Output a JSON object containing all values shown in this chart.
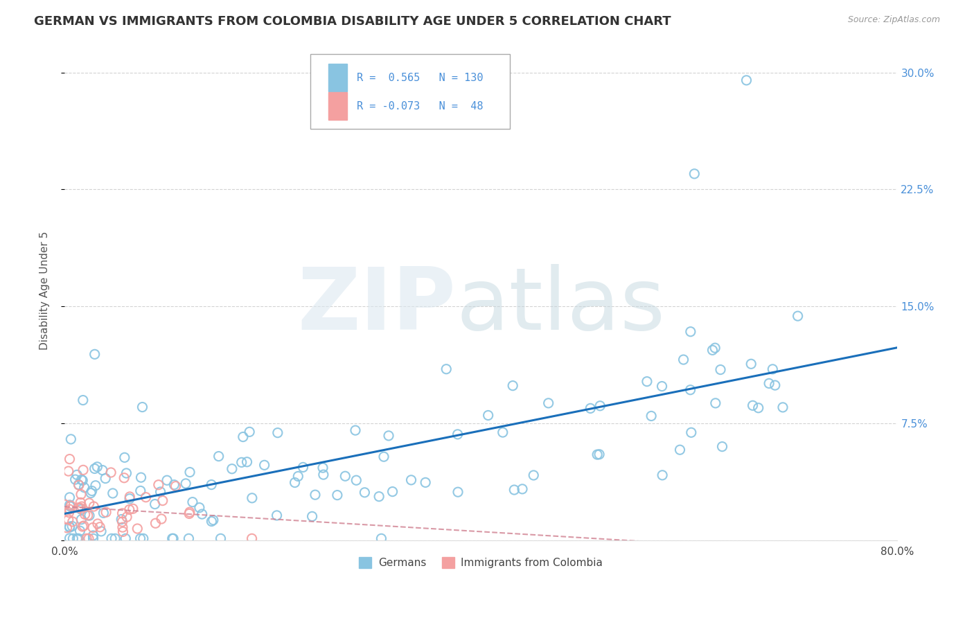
{
  "title": "GERMAN VS IMMIGRANTS FROM COLOMBIA DISABILITY AGE UNDER 5 CORRELATION CHART",
  "source": "Source: ZipAtlas.com",
  "ylabel": "Disability Age Under 5",
  "legend_label_1": "Germans",
  "legend_label_2": "Immigrants from Colombia",
  "R1": 0.565,
  "N1": 130,
  "R2": -0.073,
  "N2": 48,
  "xlim": [
    0.0,
    0.8
  ],
  "ylim": [
    0.0,
    0.32
  ],
  "xticks": [
    0.0,
    0.2,
    0.4,
    0.6,
    0.8
  ],
  "xtick_labels": [
    "0.0%",
    "",
    "",
    "",
    "80.0%"
  ],
  "ytick_labels_right": [
    "",
    "7.5%",
    "15.0%",
    "22.5%",
    "30.0%"
  ],
  "yticks": [
    0.0,
    0.075,
    0.15,
    0.225,
    0.3
  ],
  "color_german": "#89c4e1",
  "color_colombia": "#f4a0a0",
  "trend_color_german": "#1a6fba",
  "trend_color_colombia": "#d08090",
  "tick_color_right": "#4a90d9",
  "bg_color": "#ffffff",
  "grid_color": "#c8c8c8",
  "title_fontsize": 13,
  "axis_label_fontsize": 11,
  "tick_fontsize": 11,
  "seed": 42
}
